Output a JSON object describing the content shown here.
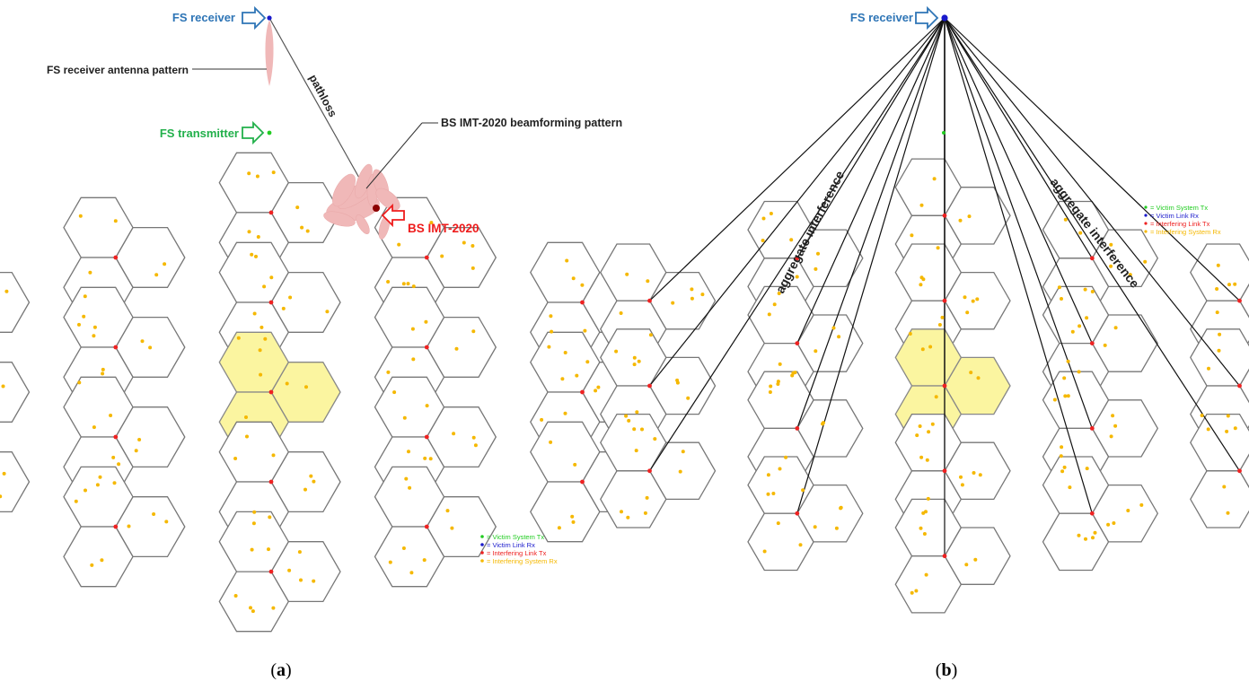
{
  "colors": {
    "victim_tx": "#22cc22",
    "victim_rx": "#1a1acc",
    "interfering_tx": "#ee2222",
    "interfering_rx": "#f5b800",
    "hex_highlight": "#fbf5a0",
    "hex_stroke": "#777777",
    "beam": "#f0b8b8",
    "label_blue": "#2e75b6",
    "label_green": "#22b04b",
    "label_red": "#ee1c1c"
  },
  "panel_a": {
    "caption_open": "(",
    "caption_letter": "a",
    "caption_close": ")",
    "fs_receiver": "FS receiver",
    "fs_receiver_antenna_pattern": "FS receiver antenna pattern",
    "pathloss": "pathloss",
    "fs_transmitter": "FS transmitter",
    "bs_beamforming_pattern": "BS IMT-2020 beamforming pattern",
    "bs_imt2020": "BS IMT-2020",
    "legend": [
      {
        "text": "= Victim System Tx",
        "color_key": "victim_tx"
      },
      {
        "text": "= Victim Link Rx",
        "color_key": "victim_rx"
      },
      {
        "text": "= Interfering Link Tx",
        "color_key": "interfering_tx"
      },
      {
        "text": "= Interfering System Rx",
        "color_key": "interfering_rx"
      }
    ]
  },
  "panel_b": {
    "caption_open": "(",
    "caption_letter": "b",
    "caption_close": ")",
    "fs_receiver": "FS receiver",
    "aggregate_left": "aggregate interference",
    "aggregate_right": "aggregate interference",
    "legend": [
      {
        "text": "= Victim System Tx",
        "color_key": "victim_tx"
      },
      {
        "text": "= Victim Link Rx",
        "color_key": "victim_rx"
      },
      {
        "text": "= Interfering Link Tx",
        "color_key": "interfering_tx"
      },
      {
        "text": "= Interfering System Rx",
        "color_key": "interfering_rx"
      }
    ]
  }
}
